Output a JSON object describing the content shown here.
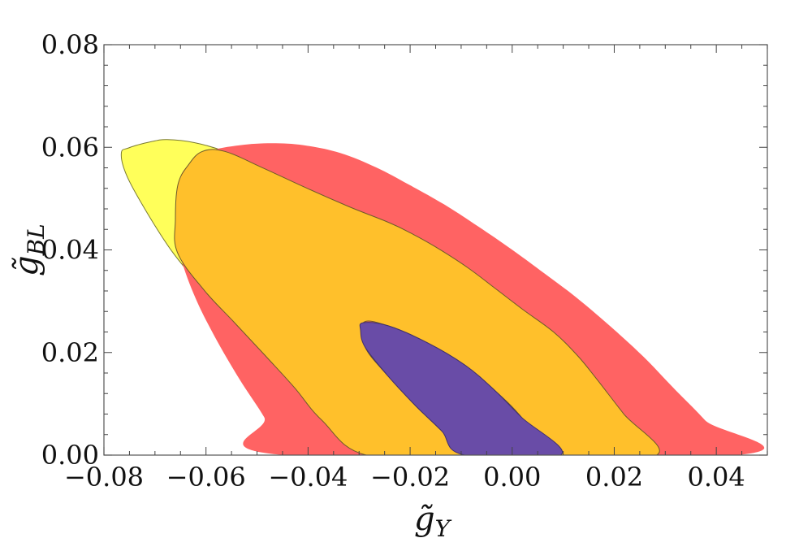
{
  "chart_data": {
    "type": "contour",
    "title": "",
    "xlabel": {
      "base": "g̃",
      "sub": "Y"
    },
    "ylabel": {
      "base": "g̃",
      "sub": "BL"
    },
    "xlim": [
      -0.08,
      0.05
    ],
    "ylim": [
      0.0,
      0.08
    ],
    "xticks": [
      -0.08,
      -0.06,
      -0.04,
      -0.02,
      0.0,
      0.02,
      0.04
    ],
    "xtick_labels": [
      "−0.08",
      "−0.06",
      "−0.04",
      "−0.02",
      "0.00",
      "0.02",
      "0.04"
    ],
    "yticks": [
      0.0,
      0.02,
      0.04,
      0.06,
      0.08
    ],
    "ytick_labels": [
      "0.00",
      "0.02",
      "0.04",
      "0.06",
      "0.08"
    ],
    "grid": false,
    "legend": "none",
    "regions": [
      {
        "id": "yellow",
        "color": "#ffff5a",
        "stroke": "#7a7a30",
        "points": [
          [
            -0.0707,
            0.0611
          ],
          [
            -0.0751,
            0.0599
          ],
          [
            -0.0766,
            0.0588
          ],
          [
            -0.0755,
            0.0544
          ],
          [
            -0.0717,
            0.0475
          ],
          [
            -0.0665,
            0.0395
          ],
          [
            -0.0605,
            0.0323
          ],
          [
            -0.0545,
            0.0259
          ],
          [
            -0.0484,
            0.0194
          ],
          [
            -0.0427,
            0.0132
          ],
          [
            -0.0373,
            0.0068
          ],
          [
            -0.0328,
            0.0
          ],
          [
            0.0,
            0.0
          ],
          [
            0.0,
            0.0
          ],
          [
            -0.0093,
            0.0
          ],
          [
            -0.0139,
            0.0048
          ],
          [
            -0.0191,
            0.0098
          ],
          [
            -0.0244,
            0.0155
          ],
          [
            -0.0288,
            0.021
          ],
          [
            -0.0292,
            0.0258
          ],
          [
            -0.0243,
            0.0252
          ],
          [
            -0.0166,
            0.0219
          ],
          [
            -0.0092,
            0.0175
          ],
          [
            -0.0034,
            0.0126
          ],
          [
            0.0018,
            0.0074
          ],
          [
            0.0072,
            0.0
          ],
          [
            0.0283,
            0.0
          ],
          [
            0.0218,
            0.0081
          ],
          [
            0.0165,
            0.0149
          ],
          [
            0.0127,
            0.0195
          ],
          [
            0.0081,
            0.024
          ],
          [
            0.0022,
            0.0283
          ],
          [
            -0.0032,
            0.0324
          ],
          [
            -0.0088,
            0.0366
          ],
          [
            -0.0152,
            0.0407
          ],
          [
            -0.0199,
            0.0433
          ],
          [
            -0.0241,
            0.0453
          ],
          [
            -0.0319,
            0.0484
          ],
          [
            -0.0404,
            0.0521
          ],
          [
            -0.0491,
            0.0561
          ],
          [
            -0.0563,
            0.0592
          ],
          [
            -0.0622,
            0.0609
          ],
          [
            -0.0676,
            0.0615
          ]
        ]
      },
      {
        "id": "red",
        "color": "#ff6363",
        "stroke": "none",
        "points": [
          [
            -0.0534,
            0.0604
          ],
          [
            -0.0594,
            0.0592
          ],
          [
            -0.0635,
            0.0565
          ],
          [
            -0.0655,
            0.0527
          ],
          [
            -0.066,
            0.0459
          ],
          [
            -0.0652,
            0.0395
          ],
          [
            -0.0624,
            0.0314
          ],
          [
            -0.0584,
            0.0233
          ],
          [
            -0.0535,
            0.0149
          ],
          [
            -0.0486,
            0.0074
          ],
          [
            -0.0446,
            0.0
          ],
          [
            0.0437,
            0.0
          ],
          [
            0.0378,
            0.0068
          ],
          [
            0.0314,
            0.0133
          ],
          [
            0.0255,
            0.0194
          ],
          [
            0.019,
            0.0253
          ],
          [
            0.0126,
            0.0307
          ],
          [
            0.0062,
            0.0355
          ],
          [
            -0.0001,
            0.0401
          ],
          [
            -0.0067,
            0.0446
          ],
          [
            -0.0134,
            0.0489
          ],
          [
            -0.0202,
            0.0527
          ],
          [
            -0.0267,
            0.0561
          ],
          [
            -0.0337,
            0.0589
          ],
          [
            -0.0408,
            0.0604
          ],
          [
            -0.0471,
            0.0608
          ]
        ]
      },
      {
        "id": "orange",
        "color": "#ffc02b",
        "stroke": "#6e5a2a",
        "points": [
          [
            -0.0607,
            0.0592
          ],
          [
            -0.0635,
            0.0565
          ],
          [
            -0.0655,
            0.0527
          ],
          [
            -0.066,
            0.0459
          ],
          [
            -0.0656,
            0.0395
          ],
          [
            -0.0605,
            0.0323
          ],
          [
            -0.0545,
            0.0259
          ],
          [
            -0.0484,
            0.0194
          ],
          [
            -0.0427,
            0.0132
          ],
          [
            -0.0373,
            0.0068
          ],
          [
            -0.0286,
            0.0
          ],
          [
            -0.0093,
            0.0
          ],
          [
            -0.0139,
            0.0048
          ],
          [
            -0.0191,
            0.0098
          ],
          [
            -0.0244,
            0.0155
          ],
          [
            -0.0288,
            0.021
          ],
          [
            -0.0292,
            0.0258
          ],
          [
            -0.0243,
            0.0252
          ],
          [
            -0.0166,
            0.0219
          ],
          [
            -0.0092,
            0.0175
          ],
          [
            -0.0034,
            0.0126
          ],
          [
            0.0018,
            0.0074
          ],
          [
            0.0072,
            0.0
          ],
          [
            0.0283,
            0.0
          ],
          [
            0.0218,
            0.0081
          ],
          [
            0.0165,
            0.0149
          ],
          [
            0.0127,
            0.0195
          ],
          [
            0.0081,
            0.024
          ],
          [
            0.0022,
            0.0283
          ],
          [
            -0.0032,
            0.0324
          ],
          [
            -0.0088,
            0.0366
          ],
          [
            -0.0152,
            0.0407
          ],
          [
            -0.0199,
            0.0433
          ],
          [
            -0.0241,
            0.0453
          ],
          [
            -0.0319,
            0.0484
          ],
          [
            -0.0404,
            0.0521
          ],
          [
            -0.0491,
            0.0561
          ],
          [
            -0.0563,
            0.0592
          ]
        ]
      },
      {
        "id": "purple",
        "color": "#694ca7",
        "stroke": "#3f2f6e",
        "points": [
          [
            -0.0292,
            0.0258
          ],
          [
            -0.0243,
            0.0252
          ],
          [
            -0.0166,
            0.0219
          ],
          [
            -0.0092,
            0.0175
          ],
          [
            -0.0034,
            0.0126
          ],
          [
            0.0018,
            0.0074
          ],
          [
            0.0095,
            0.0
          ],
          [
            -0.0093,
            0.0
          ],
          [
            -0.0139,
            0.0048
          ],
          [
            -0.0191,
            0.0098
          ],
          [
            -0.0244,
            0.0155
          ],
          [
            -0.0288,
            0.021
          ],
          [
            -0.0297,
            0.0243
          ]
        ]
      }
    ]
  }
}
